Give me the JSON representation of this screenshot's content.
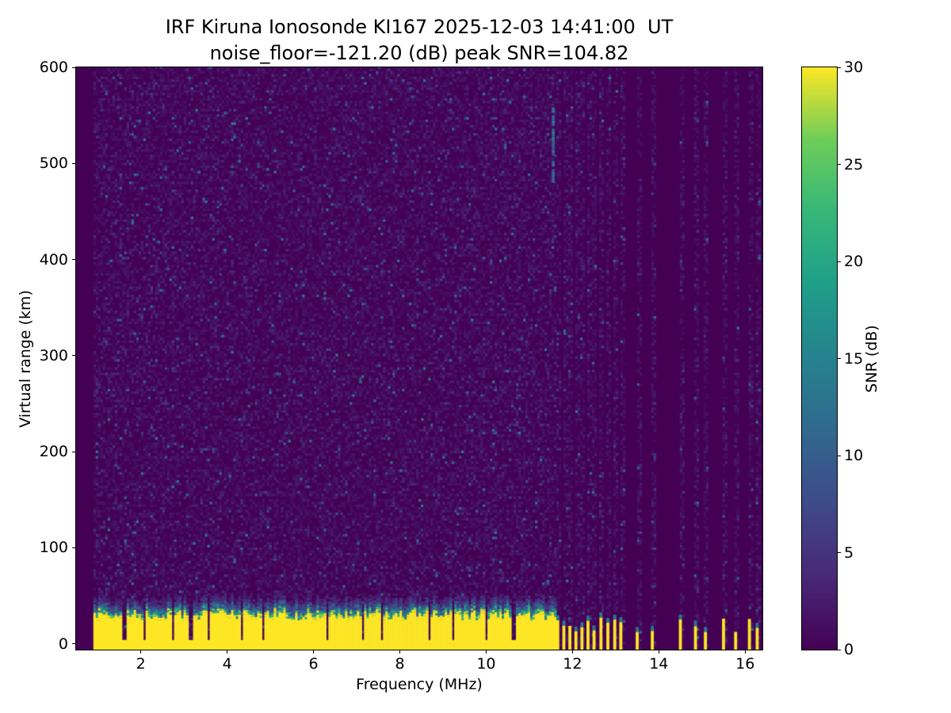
{
  "chart_data": {
    "type": "heatmap",
    "title": "IRF Kiruna Ionosonde KI167 2025-12-03 14:41:00  UT",
    "subtitle": "noise_floor=-121.20 (dB) peak SNR=104.82",
    "station": "IRF Kiruna Ionosonde KI167",
    "timestamp_ut": "2025-12-03 14:41:00 UT",
    "noise_floor_db": -121.2,
    "peak_snr_db": 104.82,
    "xlabel": "Frequency (MHz)",
    "ylabel": "Virtual range (km)",
    "xlim": [
      0.5,
      16.4
    ],
    "ylim": [
      -6,
      600
    ],
    "xticks": [
      2,
      4,
      6,
      8,
      10,
      12,
      14,
      16
    ],
    "yticks": [
      0,
      100,
      200,
      300,
      400,
      500,
      600
    ],
    "grid": false,
    "colorbar": {
      "label": "SNR (dB)",
      "min": 0,
      "max": 30,
      "ticks": [
        0,
        5,
        10,
        15,
        20,
        25,
        30
      ],
      "colormap": "viridis",
      "colors": [
        "#440154",
        "#482878",
        "#3e4a89",
        "#31688e",
        "#26828e",
        "#1f9e89",
        "#35b779",
        "#6dcd59",
        "#fde725"
      ]
    },
    "sweep": {
      "start_mhz": 0.9,
      "continuous_end_mhz": 11.62,
      "end_mhz": 16.35
    },
    "noise": {
      "seed": 42,
      "mean_db": 1.1,
      "speckle_prob": 0.015,
      "speckle_db_min": 6,
      "speckle_db_max": 14
    },
    "ground_clutter": {
      "solid_top_km": 27,
      "solid_top_jitter_km": 9,
      "fade_scale_km": 7,
      "fade_extent_km": 30,
      "snr_db": 30
    },
    "clutter_notches_mhz": [
      1.58,
      2.04,
      2.72,
      3.14,
      3.55,
      4.3,
      4.8,
      6.3,
      7.1,
      7.55,
      8.65,
      9.2,
      9.97,
      10.6
    ],
    "pulse_frequencies_mhz": [
      11.66,
      11.8,
      11.94,
      12.08,
      12.22,
      12.36,
      12.5,
      12.66,
      12.82,
      12.98,
      13.12,
      13.5,
      13.85,
      14.5,
      14.85,
      15.08,
      15.5,
      15.78,
      16.1,
      16.28
    ],
    "echo_streak": {
      "f_mhz": 11.55,
      "range_min_km": 480,
      "range_max_km": 560,
      "snr_db": 12
    }
  }
}
